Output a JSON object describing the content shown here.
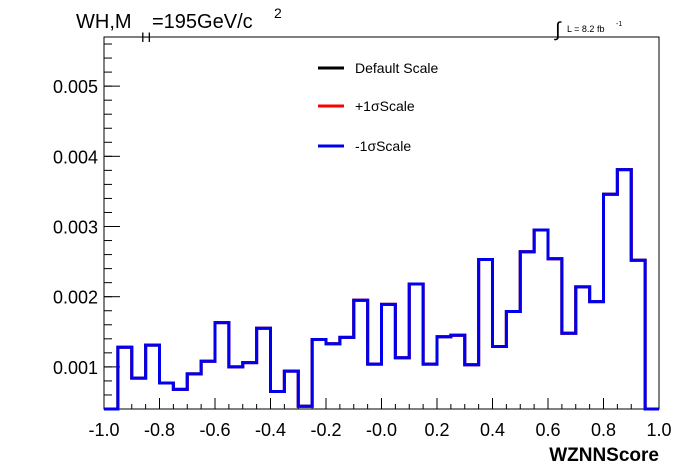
{
  "chart_data": {
    "type": "line",
    "title_main": "WH,M",
    "title_sub": "H",
    "title_rest": "=195GeV/c",
    "title_sup": "2",
    "lumi_label": "L = 8.2 fb",
    "lumi_sup": "-1",
    "lumi_integral": "∫",
    "xlabel": "WZNNScore",
    "ylabel": "",
    "xlim": [
      -1.0,
      1.0
    ],
    "ylim": [
      0.0004,
      0.0057
    ],
    "x_ticks": [
      {
        "value": -1.0,
        "label": "-1.0"
      },
      {
        "value": -0.8,
        "label": "-0.8"
      },
      {
        "value": -0.6,
        "label": "-0.6"
      },
      {
        "value": -0.4,
        "label": "-0.4"
      },
      {
        "value": -0.2,
        "label": "-0.2"
      },
      {
        "value": 0.0,
        "label": "-0.0"
      },
      {
        "value": 0.2,
        "label": "0.2"
      },
      {
        "value": 0.4,
        "label": "0.4"
      },
      {
        "value": 0.6,
        "label": "0.6"
      },
      {
        "value": 0.8,
        "label": "0.8"
      },
      {
        "value": 1.0,
        "label": "1.0"
      }
    ],
    "y_ticks": [
      {
        "value": 0.001,
        "label": "0.001"
      },
      {
        "value": 0.002,
        "label": "0.002"
      },
      {
        "value": 0.003,
        "label": "0.003"
      },
      {
        "value": 0.004,
        "label": "0.004"
      },
      {
        "value": 0.005,
        "label": "0.005"
      }
    ],
    "bin_edges": [
      -1.0,
      -0.95,
      -0.9,
      -0.85,
      -0.8,
      -0.75,
      -0.7,
      -0.65,
      -0.6,
      -0.55,
      -0.5,
      -0.45,
      -0.4,
      -0.35,
      -0.3,
      -0.25,
      -0.2,
      -0.15,
      -0.1,
      -0.05,
      0.0,
      0.05,
      0.1,
      0.15,
      0.2,
      0.25,
      0.3,
      0.35,
      0.4,
      0.45,
      0.5,
      0.55,
      0.6,
      0.65,
      0.7,
      0.75,
      0.8,
      0.85,
      0.9,
      0.95,
      1.0
    ],
    "series": [
      {
        "name": "Default Scale",
        "color": "#000000",
        "values": [
          0.0004,
          0.00128,
          0.00084,
          0.00131,
          0.00077,
          0.00068,
          0.0009,
          0.00108,
          0.00163,
          0.001,
          0.00106,
          0.00155,
          0.00065,
          0.00094,
          0.00044,
          0.00139,
          0.00133,
          0.00142,
          0.00195,
          0.00104,
          0.00189,
          0.00113,
          0.00218,
          0.00104,
          0.00143,
          0.00145,
          0.00103,
          0.00253,
          0.00129,
          0.00179,
          0.00264,
          0.00295,
          0.00254,
          0.00148,
          0.00214,
          0.00193,
          0.00346,
          0.00381,
          0.00252,
          0.0004
        ]
      },
      {
        "name": "+1σScale",
        "color": "#ff0000",
        "values": [
          0.0004,
          0.00128,
          0.00084,
          0.00131,
          0.00077,
          0.00068,
          0.0009,
          0.00108,
          0.00163,
          0.001,
          0.00106,
          0.00155,
          0.00065,
          0.00094,
          0.00044,
          0.00139,
          0.00133,
          0.00142,
          0.00195,
          0.00104,
          0.00189,
          0.00113,
          0.00218,
          0.00104,
          0.00143,
          0.00145,
          0.00103,
          0.00253,
          0.00129,
          0.00179,
          0.00264,
          0.00295,
          0.00254,
          0.00148,
          0.00214,
          0.00193,
          0.00346,
          0.00381,
          0.00252,
          0.0004
        ]
      },
      {
        "name": "-1σScale",
        "color": "#0000ee",
        "values": [
          0.0004,
          0.00128,
          0.00084,
          0.00131,
          0.00077,
          0.00068,
          0.0009,
          0.00108,
          0.00163,
          0.001,
          0.00106,
          0.00155,
          0.00065,
          0.00094,
          0.00044,
          0.00139,
          0.00133,
          0.00142,
          0.00195,
          0.00104,
          0.00189,
          0.00113,
          0.00218,
          0.00104,
          0.00143,
          0.00145,
          0.00103,
          0.00253,
          0.00129,
          0.00179,
          0.00264,
          0.00295,
          0.00254,
          0.00148,
          0.00214,
          0.00193,
          0.00346,
          0.00381,
          0.00252,
          0.0004
        ]
      }
    ],
    "legend_position": "top-center",
    "grid": false
  }
}
